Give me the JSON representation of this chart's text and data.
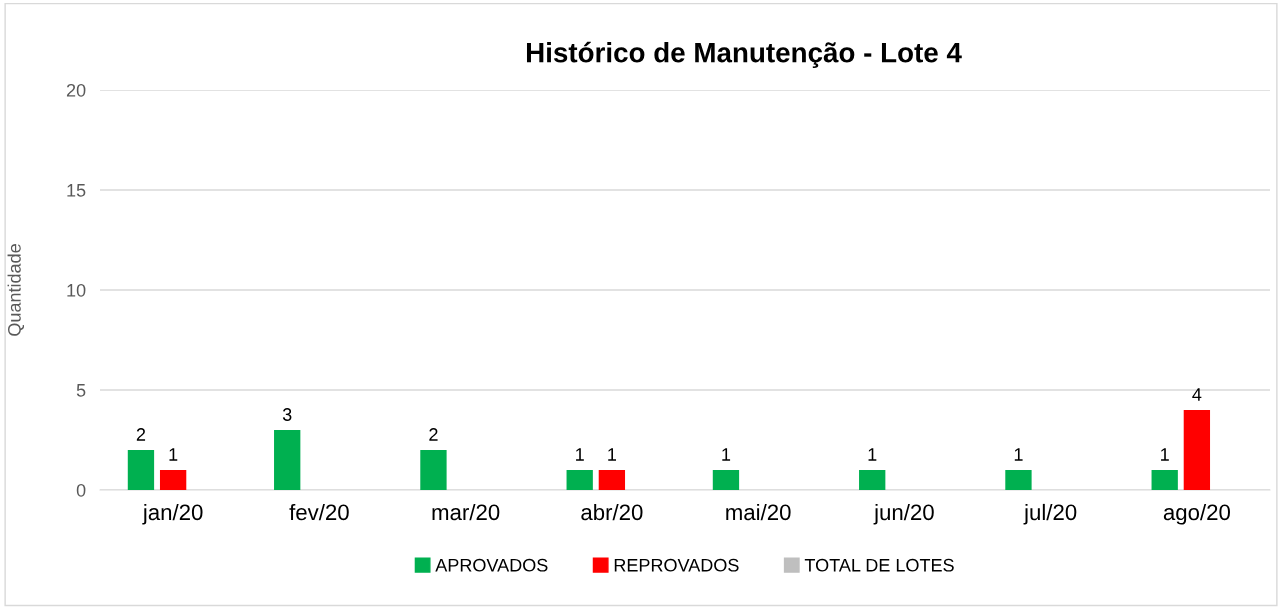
{
  "chart_data": {
    "type": "bar",
    "title": "Histórico de Manutenção - Lote 4",
    "ylabel": "Quantidade",
    "categories": [
      "jan/20",
      "fev/20",
      "mar/20",
      "abr/20",
      "mai/20",
      "jun/20",
      "jul/20",
      "ago/20"
    ],
    "series": [
      {
        "name": "APROVADOS",
        "color": "#00b050",
        "values": [
          2,
          3,
          2,
          1,
          1,
          1,
          1,
          1
        ]
      },
      {
        "name": "REPROVADOS",
        "color": "#ff0000",
        "values": [
          1,
          null,
          null,
          1,
          null,
          null,
          null,
          4
        ]
      },
      {
        "name": "TOTAL DE LOTES",
        "color": "#bfbfbf",
        "values": [
          null,
          null,
          null,
          null,
          null,
          null,
          null,
          null
        ]
      }
    ],
    "ylim": [
      0,
      20
    ],
    "yticks": [
      0,
      5,
      10,
      15,
      20
    ],
    "grid": "y",
    "legend": "bottom",
    "data_labels": true
  }
}
